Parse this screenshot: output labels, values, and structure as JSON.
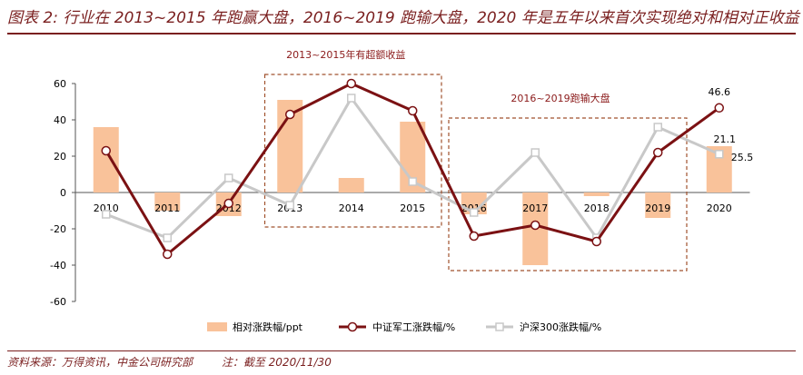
{
  "title": "图表 2: 行业在 2013~2015 年跑赢大盘，2016~2019 跑输大盘，2020 年是五年以来首次实现绝对和相对正收益",
  "footer": {
    "source": "资料来源：万得资讯，中金公司研究部",
    "note": "注：截至 2020/11/30"
  },
  "colors": {
    "bar": "#f9c29a",
    "defense_line": "#7b1113",
    "hs300_line": "#c8c8c8",
    "box": "#a0522d",
    "title": "#7a1f1f"
  },
  "chart_data": {
    "type": "bar+line",
    "categories": [
      "2010",
      "2011",
      "2012",
      "2013",
      "2014",
      "2015",
      "2016",
      "2017",
      "2018",
      "2019",
      "2020"
    ],
    "series": [
      {
        "name": "相对涨跌幅/ppt",
        "type": "bar",
        "values": [
          36,
          -10,
          -13,
          51,
          8,
          39,
          -12,
          -40,
          -2,
          -14,
          25.5
        ]
      },
      {
        "name": "中证军工涨跌幅/%",
        "type": "line",
        "values": [
          23,
          -34,
          -6,
          43,
          60,
          45,
          -24,
          -18,
          -27,
          22,
          46.6
        ]
      },
      {
        "name": "沪深300涨跌幅/%",
        "type": "line",
        "values": [
          -12,
          -25,
          8,
          -7,
          52,
          6,
          -11,
          22,
          -25,
          36,
          21.1
        ]
      }
    ],
    "y_ticks": [
      60,
      40,
      20,
      0,
      -20,
      -40,
      -60
    ],
    "ylim": [
      -60,
      60
    ],
    "annotations": [
      {
        "label": "2013~2015年有超额收益",
        "from": "2013",
        "to": "2015",
        "ymin": -19,
        "ymax": 65
      },
      {
        "label": "2016~2019跑输大盘",
        "from": "2016",
        "to": "2019",
        "ymin": -43,
        "ymax": 41
      }
    ],
    "data_labels": [
      {
        "text": "46.6",
        "category": "2020",
        "series": "中证军工涨跌幅/%"
      },
      {
        "text": "21.1",
        "category": "2020",
        "series": "沪深300涨跌幅/%"
      },
      {
        "text": "25.5",
        "category": "2020",
        "series": "相对涨跌幅/ppt"
      }
    ],
    "legend_position": "bottom"
  }
}
